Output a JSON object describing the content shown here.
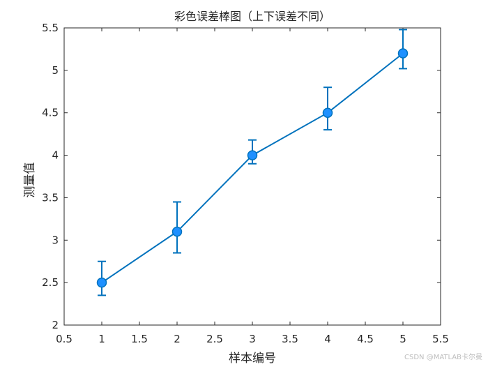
{
  "chart_data": {
    "type": "line",
    "title": "彩色误差棒图（上下误差不同）",
    "xlabel": "样本编号",
    "ylabel": "测量值",
    "xlim": [
      0.5,
      5.5
    ],
    "ylim": [
      2,
      5.5
    ],
    "xticks": [
      "0.5",
      "1",
      "1.5",
      "2",
      "2.5",
      "3",
      "3.5",
      "4",
      "4.5",
      "5",
      "5.5"
    ],
    "yticks": [
      "2",
      "2.5",
      "3",
      "3.5",
      "4",
      "4.5",
      "5",
      "5.5"
    ],
    "grid": false,
    "series": [
      {
        "x": [
          1,
          2,
          3,
          4,
          5
        ],
        "y": [
          2.5,
          3.1,
          4.0,
          4.5,
          5.2
        ],
        "lower_error": [
          0.15,
          0.25,
          0.1,
          0.2,
          0.18
        ],
        "upper_error": [
          0.25,
          0.35,
          0.18,
          0.3,
          0.28
        ],
        "color": "#0072BD",
        "marker_face_color": "#1E90FF"
      }
    ]
  },
  "watermark": "CSDN @MATLAB卡尔曼"
}
